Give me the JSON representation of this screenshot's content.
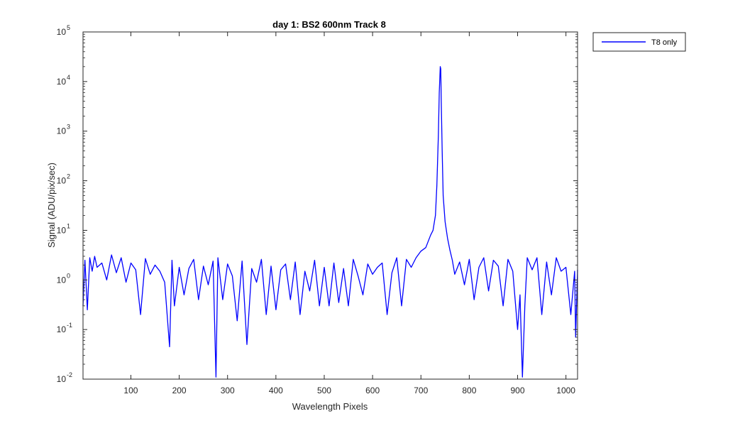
{
  "chart_data": {
    "type": "line",
    "title": "day 1: BS2  600nm  Track 8",
    "xlabel": "Wavelength Pixels",
    "ylabel": "Signal (ADU/pix/sec)",
    "xlim": [
      1,
      1024
    ],
    "ylim": [
      0.01,
      100000
    ],
    "yscale": "log",
    "x_ticks": [
      100,
      200,
      300,
      400,
      500,
      600,
      700,
      800,
      900,
      1000
    ],
    "y_ticks": [
      0.01,
      0.1,
      1,
      10,
      100,
      1000,
      10000,
      100000
    ],
    "y_tick_labels": [
      {
        "base": "10",
        "exp": "-2"
      },
      {
        "base": "10",
        "exp": "-1"
      },
      {
        "base": "10",
        "exp": "0"
      },
      {
        "base": "10",
        "exp": "1"
      },
      {
        "base": "10",
        "exp": "2"
      },
      {
        "base": "10",
        "exp": "3"
      },
      {
        "base": "10",
        "exp": "4"
      },
      {
        "base": "10",
        "exp": "5"
      }
    ],
    "grid": false,
    "legend_position": "outside-top-right",
    "series": [
      {
        "name": "T8 only",
        "color": "#0000ff",
        "x": [
          1,
          5,
          10,
          15,
          20,
          25,
          30,
          40,
          50,
          60,
          70,
          80,
          90,
          100,
          110,
          120,
          130,
          140,
          150,
          160,
          170,
          180,
          185,
          190,
          200,
          210,
          220,
          230,
          240,
          250,
          260,
          270,
          276,
          280,
          290,
          300,
          310,
          320,
          330,
          340,
          350,
          360,
          370,
          380,
          390,
          400,
          410,
          420,
          430,
          440,
          450,
          460,
          470,
          480,
          490,
          500,
          510,
          520,
          530,
          540,
          550,
          560,
          570,
          580,
          590,
          600,
          610,
          620,
          630,
          640,
          650,
          660,
          670,
          680,
          690,
          700,
          710,
          720,
          725,
          730,
          733,
          736,
          738,
          740,
          741,
          742,
          744,
          746,
          750,
          755,
          760,
          765,
          770,
          780,
          790,
          800,
          810,
          820,
          830,
          840,
          850,
          860,
          870,
          880,
          890,
          900,
          905,
          910,
          915,
          920,
          930,
          940,
          950,
          960,
          970,
          980,
          990,
          1000,
          1010,
          1018,
          1020,
          1024
        ],
        "y": [
          0.3,
          2.5,
          0.25,
          2.8,
          1.5,
          3.0,
          1.8,
          2.2,
          1.0,
          3.2,
          1.4,
          2.8,
          0.9,
          2.2,
          1.6,
          0.2,
          2.7,
          1.3,
          2.0,
          1.5,
          0.9,
          0.045,
          2.5,
          0.3,
          1.8,
          0.5,
          1.7,
          2.6,
          0.4,
          1.9,
          0.8,
          2.4,
          0.011,
          2.8,
          0.4,
          2.1,
          1.2,
          0.15,
          2.4,
          0.05,
          1.7,
          0.9,
          2.6,
          0.2,
          1.9,
          0.25,
          1.6,
          2.1,
          0.4,
          2.3,
          0.2,
          1.5,
          0.6,
          2.5,
          0.3,
          1.8,
          0.3,
          2.2,
          0.35,
          1.7,
          0.3,
          2.6,
          1.2,
          0.5,
          2.1,
          1.3,
          1.8,
          2.2,
          0.2,
          1.4,
          2.8,
          0.3,
          2.6,
          1.8,
          2.8,
          3.8,
          4.5,
          8.0,
          10.0,
          20.0,
          80.0,
          800.0,
          6000.0,
          20000.0,
          18000.0,
          4000.0,
          400.0,
          50.0,
          15.0,
          7.0,
          4.0,
          2.5,
          1.3,
          2.3,
          0.8,
          2.6,
          0.4,
          1.8,
          2.8,
          0.6,
          2.5,
          1.9,
          0.3,
          2.6,
          1.5,
          0.1,
          0.5,
          0.011,
          0.3,
          2.8,
          1.6,
          2.8,
          0.2,
          2.3,
          0.5,
          2.8,
          1.5,
          1.8,
          0.2,
          1.5,
          0.07,
          1.6
        ]
      }
    ]
  }
}
